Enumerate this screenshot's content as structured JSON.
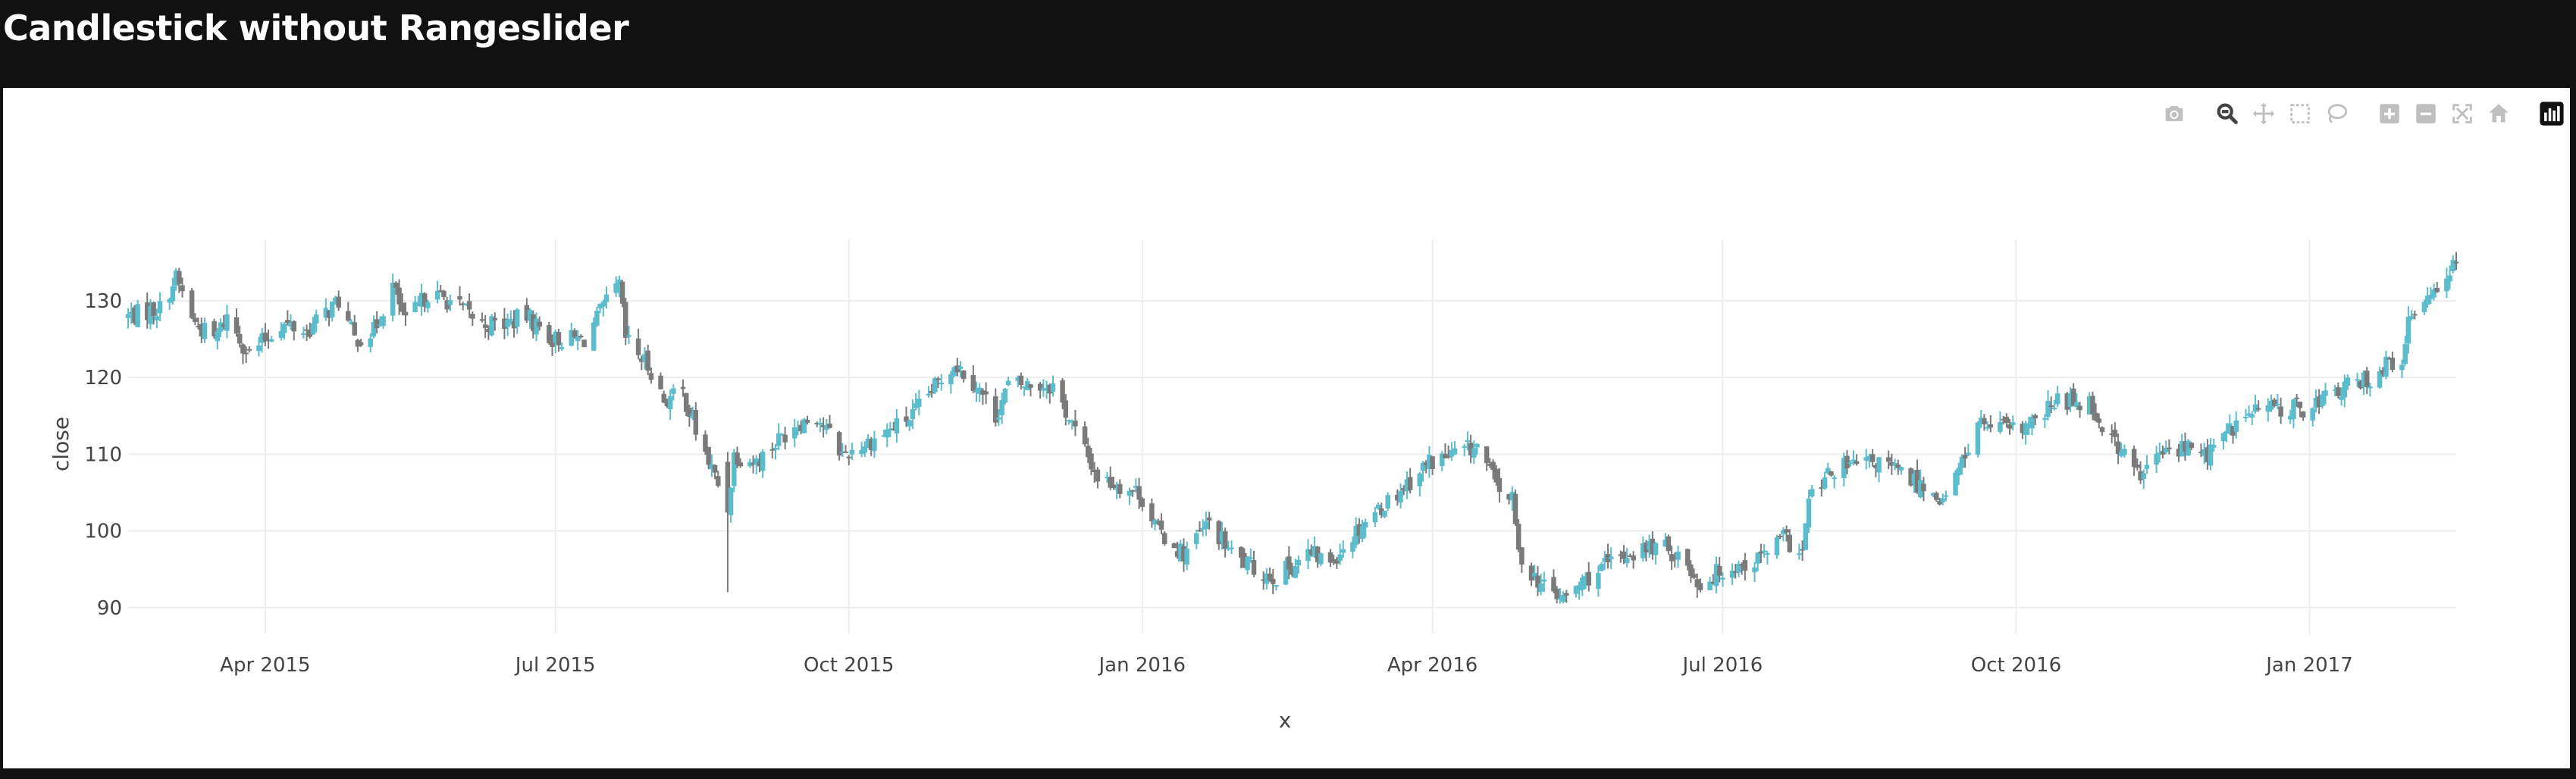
{
  "page_title": "Candlestick without Rangeslider",
  "colors": {
    "increasing": "#5bbccc",
    "decreasing": "#7a7a7a",
    "grid": "#eeeeee",
    "icon": "#bfbfbf",
    "icon_active": "#444444"
  },
  "modebar": {
    "icons": [
      "camera-icon",
      "zoom-icon",
      "pan-icon",
      "box-select-icon",
      "lasso-select-icon",
      "zoom-in-icon",
      "zoom-out-icon",
      "autoscale-icon",
      "reset-axes-icon",
      "plotly-logo-icon"
    ]
  },
  "chart_data": {
    "type": "candlestick",
    "title": "",
    "xlabel": "x",
    "ylabel": "close",
    "x_range": [
      "2015-02-17",
      "2017-02-16"
    ],
    "ylim": [
      88,
      138
    ],
    "x_ticks": [
      {
        "date": "2015-04-01",
        "label": "Apr 2015"
      },
      {
        "date": "2015-07-01",
        "label": "Jul 2015"
      },
      {
        "date": "2015-10-01",
        "label": "Oct 2015"
      },
      {
        "date": "2016-01-01",
        "label": "Jan 2016"
      },
      {
        "date": "2016-04-01",
        "label": "Apr 2016"
      },
      {
        "date": "2016-07-01",
        "label": "Jul 2016"
      },
      {
        "date": "2016-10-01",
        "label": "Oct 2016"
      },
      {
        "date": "2017-01-01",
        "label": "Jan 2017"
      }
    ],
    "y_ticks": [
      90,
      100,
      110,
      120,
      130
    ],
    "grid": true,
    "legend": "none",
    "close_path": [
      [
        "2015-02-17",
        128
      ],
      [
        "2015-02-27",
        129
      ],
      [
        "2015-03-04",
        133
      ],
      [
        "2015-03-10",
        127
      ],
      [
        "2015-03-16",
        125
      ],
      [
        "2015-03-20",
        128
      ],
      [
        "2015-03-27",
        123
      ],
      [
        "2015-04-06",
        127
      ],
      [
        "2015-04-14",
        126
      ],
      [
        "2015-04-24",
        130
      ],
      [
        "2015-04-29",
        125
      ],
      [
        "2015-05-05",
        126
      ],
      [
        "2015-05-11",
        132
      ],
      [
        "2015-05-15",
        127
      ],
      [
        "2015-05-22",
        131
      ],
      [
        "2015-05-29",
        130
      ],
      [
        "2015-06-08",
        127
      ],
      [
        "2015-06-15",
        127
      ],
      [
        "2015-06-22",
        128
      ],
      [
        "2015-06-30",
        125
      ],
      [
        "2015-07-10",
        125
      ],
      [
        "2015-07-16",
        129
      ],
      [
        "2015-07-21",
        132
      ],
      [
        "2015-07-23",
        125
      ],
      [
        "2015-07-31",
        121
      ],
      [
        "2015-08-04",
        117
      ],
      [
        "2015-08-10",
        118
      ],
      [
        "2015-08-14",
        113
      ],
      [
        "2015-08-21",
        106
      ],
      [
        "2015-08-24",
        103
      ],
      [
        "2015-08-26",
        110
      ],
      [
        "2015-09-02",
        109
      ],
      [
        "2015-09-14",
        114
      ],
      [
        "2015-09-21",
        115
      ],
      [
        "2015-09-29",
        110
      ],
      [
        "2015-10-09",
        112
      ],
      [
        "2015-10-21",
        115
      ],
      [
        "2015-11-03",
        122
      ],
      [
        "2015-11-10",
        119
      ],
      [
        "2015-11-16",
        115
      ],
      [
        "2015-11-20",
        119
      ],
      [
        "2015-12-04",
        119
      ],
      [
        "2015-12-11",
        113
      ],
      [
        "2015-12-18",
        107
      ],
      [
        "2015-12-31",
        105
      ],
      [
        "2016-01-06",
        100
      ],
      [
        "2016-01-14",
        97
      ],
      [
        "2016-01-22",
        101
      ],
      [
        "2016-01-29",
        97
      ],
      [
        "2016-02-05",
        95
      ],
      [
        "2016-02-12",
        94
      ],
      [
        "2016-02-22",
        97
      ],
      [
        "2016-02-29",
        96
      ],
      [
        "2016-03-10",
        101
      ],
      [
        "2016-03-21",
        105
      ],
      [
        "2016-03-31",
        109
      ],
      [
        "2016-04-08",
        110
      ],
      [
        "2016-04-15",
        111
      ],
      [
        "2016-04-21",
        106
      ],
      [
        "2016-04-26",
        104
      ],
      [
        "2016-04-28",
        97
      ],
      [
        "2016-05-05",
        93
      ],
      [
        "2016-05-12",
        91
      ],
      [
        "2016-05-20",
        94
      ],
      [
        "2016-06-01",
        97
      ],
      [
        "2016-06-10",
        98
      ],
      [
        "2016-06-17",
        97
      ],
      [
        "2016-06-24",
        93
      ],
      [
        "2016-07-01",
        95
      ],
      [
        "2016-07-11",
        96
      ],
      [
        "2016-07-20",
        99
      ],
      [
        "2016-07-26",
        97
      ],
      [
        "2016-07-28",
        104
      ],
      [
        "2016-08-05",
        108
      ],
      [
        "2016-08-19",
        109
      ],
      [
        "2016-09-01",
        106
      ],
      [
        "2016-09-09",
        104
      ],
      [
        "2016-09-13",
        108
      ],
      [
        "2016-09-19",
        114
      ],
      [
        "2016-09-30",
        113
      ],
      [
        "2016-10-07",
        114
      ],
      [
        "2016-10-14",
        117
      ],
      [
        "2016-10-24",
        117
      ],
      [
        "2016-10-26",
        115
      ],
      [
        "2016-11-02",
        111
      ],
      [
        "2016-11-09",
        107
      ],
      [
        "2016-11-15",
        110
      ],
      [
        "2016-11-23",
        111
      ],
      [
        "2016-11-30",
        110
      ],
      [
        "2016-12-09",
        114
      ],
      [
        "2016-12-16",
        116
      ],
      [
        "2016-12-30",
        116
      ],
      [
        "2017-01-09",
        118
      ],
      [
        "2017-01-20",
        120
      ],
      [
        "2017-01-27",
        122
      ],
      [
        "2017-01-30",
        121
      ],
      [
        "2017-02-01",
        127
      ],
      [
        "2017-02-07",
        131
      ],
      [
        "2017-02-16",
        135
      ]
    ]
  }
}
